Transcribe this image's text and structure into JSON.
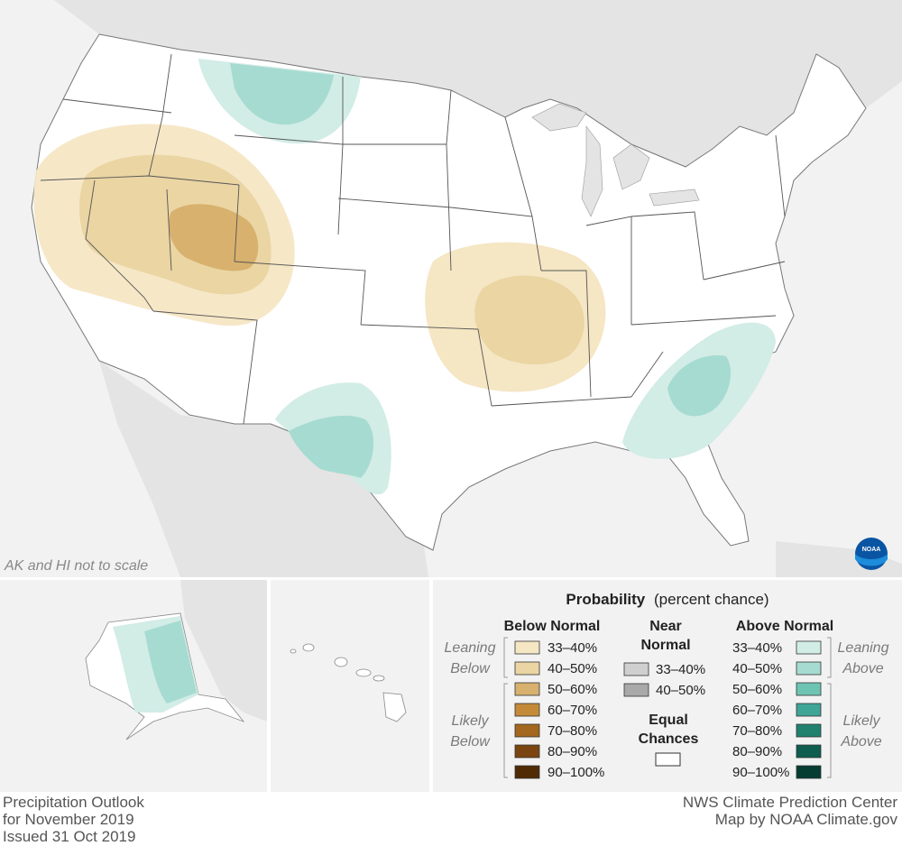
{
  "map": {
    "scale_note": "AK and HI not to scale",
    "logo_text": "NOAA"
  },
  "legend": {
    "title_bold": "Probability",
    "title_rest": "(percent chance)",
    "below_normal": {
      "heading": "Below Normal",
      "leaning_label": [
        "Leaning",
        "Below"
      ],
      "likely_label": [
        "Likely",
        "Below"
      ],
      "items": [
        {
          "range": "33–40%",
          "color": "#f5e6c4"
        },
        {
          "range": "40–50%",
          "color": "#ead5a3"
        },
        {
          "range": "50–60%",
          "color": "#d8b16e"
        },
        {
          "range": "60–70%",
          "color": "#c48a3a"
        },
        {
          "range": "70–80%",
          "color": "#a3671f"
        },
        {
          "range": "80–90%",
          "color": "#7a4510"
        },
        {
          "range": "90–100%",
          "color": "#4f2a05"
        }
      ]
    },
    "near_normal": {
      "heading": [
        "Near",
        "Normal"
      ],
      "items": [
        {
          "range": "33–40%",
          "color": "#cfcfcf"
        },
        {
          "range": "40–50%",
          "color": "#a9a9a9"
        }
      ]
    },
    "equal_chances": {
      "heading": [
        "Equal",
        "Chances"
      ],
      "color": "#ffffff"
    },
    "above_normal": {
      "heading": "Above Normal",
      "leaning_label": [
        "Leaning",
        "Above"
      ],
      "likely_label": [
        "Likely",
        "Above"
      ],
      "items": [
        {
          "range": "33–40%",
          "color": "#d2ece6"
        },
        {
          "range": "40–50%",
          "color": "#a6dbd1"
        },
        {
          "range": "50–60%",
          "color": "#6ec4b3"
        },
        {
          "range": "60–70%",
          "color": "#3fa596"
        },
        {
          "range": "70–80%",
          "color": "#20816f"
        },
        {
          "range": "80–90%",
          "color": "#0e5d4f"
        },
        {
          "range": "90–100%",
          "color": "#053d33"
        }
      ]
    }
  },
  "footer": {
    "left": [
      "Precipitation Outlook",
      "for November 2019",
      "Issued 31 Oct 2019"
    ],
    "right": [
      "NWS Climate Prediction Center",
      "Map by NOAA Climate.gov"
    ]
  },
  "colors": {
    "background": "#f2f2f2",
    "land": "#ffffff",
    "state_line": "#555555",
    "neighbor_land": "#e4e4e4"
  }
}
